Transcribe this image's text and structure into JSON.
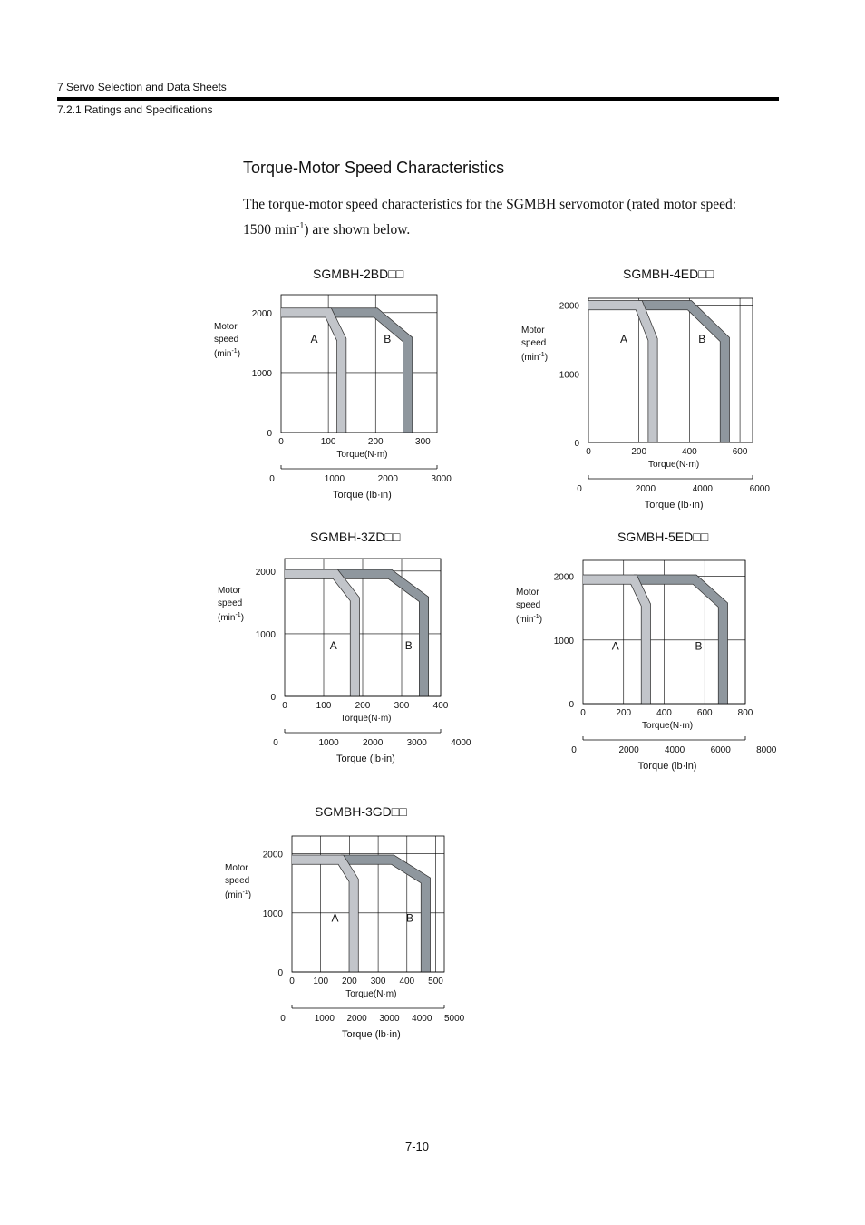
{
  "header": {
    "chapter": "7  Servo Selection and Data Sheets",
    "section": "7.2.1  Ratings and Specifications"
  },
  "section_title": "Torque-Motor Speed Characteristics",
  "intro": {
    "line1": " The torque-motor speed characteristics for the SGMBH servomotor (rated motor speed:",
    "line2_pre": "1500 min",
    "line2_sup": "-1",
    "line2_post": ") are shown below."
  },
  "page_number": "7-10",
  "colors": {
    "region_a": "#c2c5ca",
    "region_b": "#8f979e",
    "grid": "#000000"
  },
  "chart_data": [
    {
      "type": "area",
      "title": "SGMBH-2BD□□",
      "ylabel": [
        "Motor",
        "speed",
        "(min",
        "-1",
        ")"
      ],
      "xlabel": "Torque(N·m)",
      "x2label": "Torque (lb·in)",
      "xlim": [
        0,
        330
      ],
      "ylim": [
        0,
        2300
      ],
      "x_ticks": [
        0,
        100,
        200,
        300
      ],
      "y_ticks": [
        0,
        1000,
        2000
      ],
      "x2_ticks": [
        0,
        1000,
        2000,
        3000
      ],
      "x2_factor": 8.85,
      "region_labels": [
        {
          "text": "A",
          "x": 70,
          "y": 1500
        },
        {
          "text": "B",
          "x": 225,
          "y": 1500
        }
      ],
      "series": [
        {
          "name": "A",
          "points": [
            [
              0,
              2000
            ],
            [
              100,
              2000
            ],
            [
              128,
              1550
            ],
            [
              128,
              0
            ]
          ]
        },
        {
          "name": "B",
          "points": [
            [
              100,
              2000
            ],
            [
              200,
              2000
            ],
            [
              268,
              1550
            ],
            [
              268,
              0
            ]
          ]
        }
      ]
    },
    {
      "type": "area",
      "title": "SGMBH-4ED□□",
      "ylabel": [
        "Motor",
        "speed",
        "(min",
        "-1",
        ")"
      ],
      "xlabel": "Torque(N·m)",
      "x2label": "Torque (lb·in)",
      "xlim": [
        0,
        650
      ],
      "ylim": [
        0,
        2100
      ],
      "x_ticks": [
        0,
        200,
        400,
        600
      ],
      "y_ticks": [
        0,
        1000,
        2000
      ],
      "x2_ticks": [
        0,
        2000,
        4000,
        6000
      ],
      "x2_factor": 8.85,
      "region_labels": [
        {
          "text": "A",
          "x": 140,
          "y": 1450
        },
        {
          "text": "B",
          "x": 450,
          "y": 1450
        }
      ],
      "series": [
        {
          "name": "A",
          "points": [
            [
              0,
              2000
            ],
            [
              200,
              2000
            ],
            [
              255,
              1500
            ],
            [
              255,
              0
            ]
          ]
        },
        {
          "name": "B",
          "points": [
            [
              200,
              2000
            ],
            [
              400,
              2000
            ],
            [
              540,
              1500
            ],
            [
              540,
              0
            ]
          ]
        }
      ]
    },
    {
      "type": "area",
      "title": "SGMBH-3ZD□□",
      "ylabel": [
        "Motor",
        "speed",
        "(min",
        "-1",
        ")"
      ],
      "xlabel": "Torque(N·m)",
      "x2label": "Torque (lb·in)",
      "xlim": [
        0,
        400
      ],
      "ylim": [
        0,
        2200
      ],
      "x_ticks": [
        0,
        100,
        200,
        300,
        400
      ],
      "y_ticks": [
        0,
        1000,
        2000
      ],
      "x2_ticks": [
        0,
        1000,
        2000,
        3000,
        4000
      ],
      "x2_factor": 8.85,
      "region_labels": [
        {
          "text": "A",
          "x": 125,
          "y": 750
        },
        {
          "text": "B",
          "x": 318,
          "y": 750
        }
      ],
      "series": [
        {
          "name": "A",
          "points": [
            [
              0,
              1950
            ],
            [
              130,
              1950
            ],
            [
              180,
              1550
            ],
            [
              180,
              0
            ]
          ]
        },
        {
          "name": "B",
          "points": [
            [
              130,
              1950
            ],
            [
              270,
              1950
            ],
            [
              357,
              1550
            ],
            [
              357,
              0
            ]
          ]
        }
      ]
    },
    {
      "type": "area",
      "title": "SGMBH-5ED□□",
      "ylabel": [
        "Motor",
        "speed",
        "(min",
        "-1",
        ")"
      ],
      "xlabel": "Torque(N·m)",
      "x2label": "Torque (lb·in)",
      "xlim": [
        0,
        800
      ],
      "ylim": [
        0,
        2250
      ],
      "x_ticks": [
        0,
        200,
        400,
        600,
        800
      ],
      "y_ticks": [
        0,
        1000,
        2000
      ],
      "x2_ticks": [
        0,
        2000,
        4000,
        6000,
        8000
      ],
      "x2_factor": 8.85,
      "region_labels": [
        {
          "text": "A",
          "x": 160,
          "y": 850
        },
        {
          "text": "B",
          "x": 570,
          "y": 850
        }
      ],
      "series": [
        {
          "name": "A",
          "points": [
            [
              0,
              1950
            ],
            [
              250,
              1950
            ],
            [
              310,
              1550
            ],
            [
              310,
              0
            ]
          ]
        },
        {
          "name": "B",
          "points": [
            [
              250,
              1950
            ],
            [
              550,
              1950
            ],
            [
              690,
              1550
            ],
            [
              690,
              0
            ]
          ]
        }
      ]
    },
    {
      "type": "area",
      "title": "SGMBH-3GD□□",
      "ylabel": [
        "Motor",
        "speed",
        "(min",
        "-1",
        ")"
      ],
      "xlabel": "Torque(N·m)",
      "x2label": "Torque (lb·in)",
      "xlim": [
        0,
        530
      ],
      "ylim": [
        0,
        2300
      ],
      "x_ticks": [
        0,
        100,
        200,
        300,
        400,
        500
      ],
      "y_ticks": [
        0,
        1000,
        2000
      ],
      "x2_ticks": [
        0,
        1000,
        2000,
        3000,
        4000,
        5000
      ],
      "x2_factor": 8.85,
      "region_labels": [
        {
          "text": "A",
          "x": 150,
          "y": 850
        },
        {
          "text": "B",
          "x": 410,
          "y": 850
        }
      ],
      "series": [
        {
          "name": "A",
          "points": [
            [
              0,
              1900
            ],
            [
              170,
              1900
            ],
            [
              215,
              1550
            ],
            [
              215,
              0
            ]
          ]
        },
        {
          "name": "B",
          "points": [
            [
              170,
              1900
            ],
            [
              350,
              1900
            ],
            [
              465,
              1550
            ],
            [
              465,
              0
            ]
          ]
        }
      ]
    }
  ]
}
